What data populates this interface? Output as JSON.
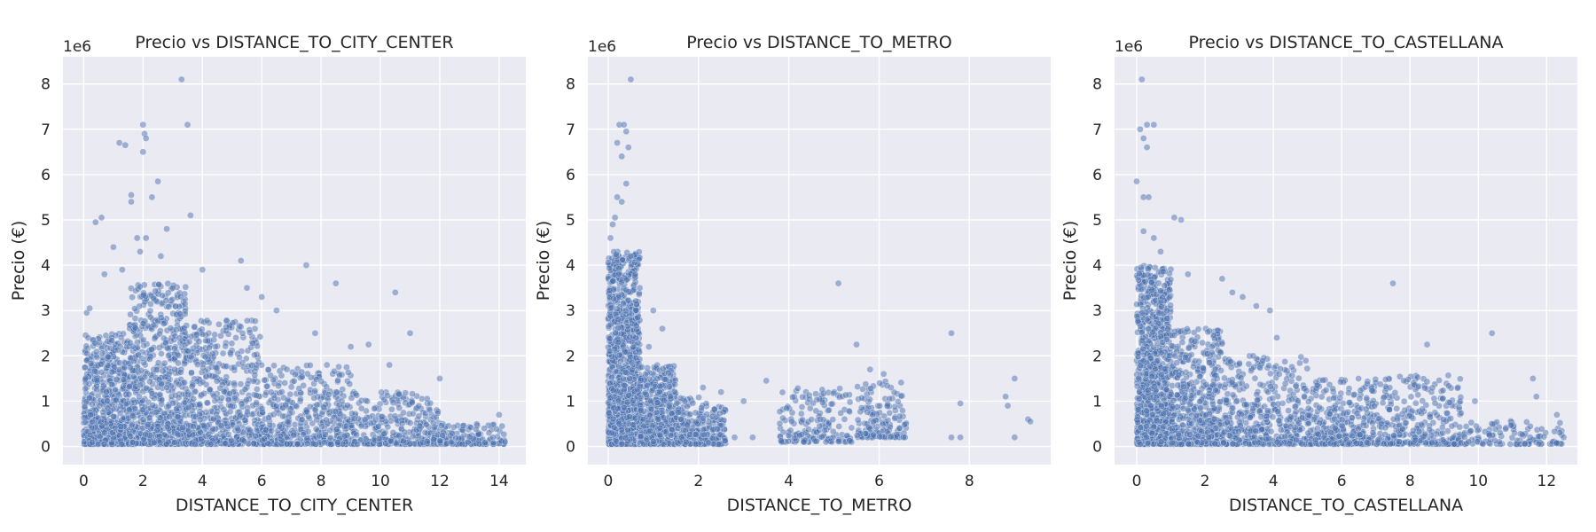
{
  "colors": {
    "plot_background": "#eaeaf2",
    "grid": "#ffffff",
    "point": "#4c72b0",
    "text": "#262626"
  },
  "chart_data": [
    {
      "type": "scatter",
      "title": "Precio vs DISTANCE_TO_CITY_CENTER",
      "xlabel": "DISTANCE_TO_CITY_CENTER",
      "ylabel": "Precio (€)",
      "y_offset_label": "1e6",
      "xlim": [
        -0.7,
        14.9
      ],
      "ylim": [
        -0.4,
        8.6
      ],
      "xticks": [
        0,
        2,
        4,
        6,
        8,
        10,
        12,
        14
      ],
      "yticks": [
        0,
        1,
        2,
        3,
        4,
        5,
        6,
        7,
        8
      ],
      "grid": true,
      "legend": "none",
      "point_alpha": 0.5,
      "points": [
        [
          3.3,
          8.1
        ],
        [
          3.5,
          7.1
        ],
        [
          2.0,
          7.1
        ],
        [
          2.05,
          6.9
        ],
        [
          2.1,
          6.8
        ],
        [
          2.0,
          6.5
        ],
        [
          1.2,
          6.7
        ],
        [
          1.4,
          6.65
        ],
        [
          2.5,
          5.85
        ],
        [
          2.3,
          5.5
        ],
        [
          1.6,
          5.4
        ],
        [
          1.6,
          5.55
        ],
        [
          0.6,
          5.05
        ],
        [
          0.4,
          4.95
        ],
        [
          3.6,
          5.1
        ],
        [
          5.3,
          4.1
        ],
        [
          2.1,
          4.6
        ],
        [
          1.8,
          4.6
        ],
        [
          1.0,
          4.4
        ],
        [
          2.8,
          4.8
        ],
        [
          7.5,
          4.0
        ],
        [
          8.5,
          3.6
        ],
        [
          10.5,
          3.4
        ],
        [
          11.0,
          2.5
        ],
        [
          7.8,
          2.5
        ],
        [
          9.6,
          2.25
        ],
        [
          9.0,
          2.2
        ],
        [
          10.3,
          1.8
        ],
        [
          12.0,
          1.5
        ],
        [
          4.0,
          3.9
        ],
        [
          3.0,
          3.5
        ],
        [
          5.5,
          3.5
        ],
        [
          6.0,
          3.3
        ],
        [
          6.5,
          3.0
        ],
        [
          2.6,
          4.2
        ],
        [
          1.9,
          4.3
        ],
        [
          1.3,
          3.9
        ],
        [
          0.7,
          3.8
        ],
        [
          0.1,
          2.95
        ],
        [
          0.2,
          3.05
        ],
        [
          14.0,
          0.7
        ],
        [
          14.1,
          0.45
        ],
        [
          13.5,
          0.4
        ],
        [
          13.8,
          0.2
        ],
        [
          14.2,
          0.1
        ]
      ],
      "dense_regions": [
        {
          "x": [
            0.0,
            1.5
          ],
          "y": [
            0.05,
            2.5
          ],
          "n": 650
        },
        {
          "x": [
            1.5,
            3.5
          ],
          "y": [
            0.05,
            3.6
          ],
          "n": 750
        },
        {
          "x": [
            3.5,
            6.0
          ],
          "y": [
            0.05,
            2.8
          ],
          "n": 550
        },
        {
          "x": [
            6.0,
            9.0
          ],
          "y": [
            0.05,
            1.8
          ],
          "n": 450
        },
        {
          "x": [
            9.0,
            12.0
          ],
          "y": [
            0.05,
            1.2
          ],
          "n": 320
        },
        {
          "x": [
            12.0,
            14.2
          ],
          "y": [
            0.05,
            0.5
          ],
          "n": 130
        }
      ]
    },
    {
      "type": "scatter",
      "title": "Precio vs DISTANCE_TO_METRO",
      "xlabel": "DISTANCE_TO_METRO",
      "ylabel": "Precio (€)",
      "y_offset_label": "1e6",
      "xlim": [
        -0.45,
        9.8
      ],
      "ylim": [
        -0.4,
        8.6
      ],
      "xticks": [
        0,
        2,
        4,
        6,
        8
      ],
      "yticks": [
        0,
        1,
        2,
        3,
        4,
        5,
        6,
        7,
        8
      ],
      "grid": true,
      "legend": "none",
      "point_alpha": 0.5,
      "points": [
        [
          0.5,
          8.1
        ],
        [
          0.25,
          7.1
        ],
        [
          0.35,
          7.1
        ],
        [
          0.4,
          6.95
        ],
        [
          0.2,
          6.7
        ],
        [
          0.45,
          6.6
        ],
        [
          0.3,
          6.4
        ],
        [
          0.2,
          5.5
        ],
        [
          0.3,
          5.4
        ],
        [
          0.15,
          5.05
        ],
        [
          0.4,
          5.8
        ],
        [
          0.1,
          4.9
        ],
        [
          0.05,
          4.6
        ],
        [
          0.5,
          4.2
        ],
        [
          0.6,
          3.8
        ],
        [
          0.7,
          3.5
        ],
        [
          5.1,
          3.6
        ],
        [
          5.5,
          2.25
        ],
        [
          7.6,
          2.5
        ],
        [
          9.0,
          1.5
        ],
        [
          8.8,
          1.1
        ],
        [
          8.85,
          0.9
        ],
        [
          9.3,
          0.6
        ],
        [
          9.35,
          0.55
        ],
        [
          9.0,
          0.2
        ],
        [
          7.8,
          0.95
        ],
        [
          7.8,
          0.2
        ],
        [
          7.6,
          0.2
        ],
        [
          3.5,
          1.45
        ],
        [
          3.0,
          1.0
        ],
        [
          3.2,
          0.2
        ],
        [
          2.8,
          0.2
        ],
        [
          1.0,
          3.0
        ],
        [
          1.2,
          2.6
        ],
        [
          0.9,
          2.2
        ],
        [
          2.5,
          1.2
        ],
        [
          2.1,
          1.3
        ],
        [
          6.1,
          1.6
        ],
        [
          5.8,
          1.7
        ]
      ],
      "dense_regions": [
        {
          "x": [
            0.0,
            0.7
          ],
          "y": [
            0.05,
            4.3
          ],
          "n": 1400
        },
        {
          "x": [
            0.7,
            1.5
          ],
          "y": [
            0.05,
            1.8
          ],
          "n": 500
        },
        {
          "x": [
            1.5,
            2.6
          ],
          "y": [
            0.05,
            1.1
          ],
          "n": 280
        },
        {
          "x": [
            3.8,
            5.4
          ],
          "y": [
            0.1,
            1.3
          ],
          "n": 170
        },
        {
          "x": [
            5.5,
            6.6
          ],
          "y": [
            0.2,
            1.5
          ],
          "n": 150
        }
      ]
    },
    {
      "type": "scatter",
      "title": "Precio vs DISTANCE_TO_CASTELLANA",
      "xlabel": "DISTANCE_TO_CASTELLANA",
      "ylabel": "Precio (€)",
      "y_offset_label": "1e6",
      "xlim": [
        -0.65,
        12.9
      ],
      "ylim": [
        -0.4,
        8.6
      ],
      "xticks": [
        0,
        2,
        4,
        6,
        8,
        10,
        12
      ],
      "yticks": [
        0,
        1,
        2,
        3,
        4,
        5,
        6,
        7,
        8
      ],
      "grid": true,
      "legend": "none",
      "point_alpha": 0.5,
      "points": [
        [
          0.15,
          8.1
        ],
        [
          0.3,
          7.1
        ],
        [
          0.5,
          7.1
        ],
        [
          0.1,
          7.0
        ],
        [
          0.2,
          6.8
        ],
        [
          0.3,
          6.6
        ],
        [
          0.0,
          5.85
        ],
        [
          0.2,
          5.5
        ],
        [
          0.35,
          5.5
        ],
        [
          1.1,
          5.05
        ],
        [
          1.3,
          5.0
        ],
        [
          0.2,
          4.75
        ],
        [
          0.5,
          4.6
        ],
        [
          0.7,
          4.3
        ],
        [
          7.5,
          3.6
        ],
        [
          8.5,
          2.25
        ],
        [
          10.4,
          2.5
        ],
        [
          11.6,
          1.5
        ],
        [
          11.7,
          1.1
        ],
        [
          12.3,
          0.7
        ],
        [
          12.5,
          0.2
        ],
        [
          9.9,
          1.0
        ],
        [
          2.5,
          3.7
        ],
        [
          2.8,
          3.4
        ],
        [
          3.1,
          3.3
        ],
        [
          3.5,
          3.1
        ],
        [
          3.9,
          3.0
        ],
        [
          4.1,
          2.4
        ],
        [
          1.5,
          3.8
        ]
      ],
      "dense_regions": [
        {
          "x": [
            0.0,
            1.0
          ],
          "y": [
            0.05,
            4.0
          ],
          "n": 1100
        },
        {
          "x": [
            1.0,
            2.5
          ],
          "y": [
            0.05,
            2.6
          ],
          "n": 550
        },
        {
          "x": [
            2.5,
            5.0
          ],
          "y": [
            0.05,
            2.0
          ],
          "n": 450
        },
        {
          "x": [
            5.0,
            7.0
          ],
          "y": [
            0.05,
            1.5
          ],
          "n": 320
        },
        {
          "x": [
            7.0,
            9.5
          ],
          "y": [
            0.05,
            1.6
          ],
          "n": 320
        },
        {
          "x": [
            9.5,
            12.5
          ],
          "y": [
            0.05,
            0.6
          ],
          "n": 120
        }
      ]
    }
  ]
}
